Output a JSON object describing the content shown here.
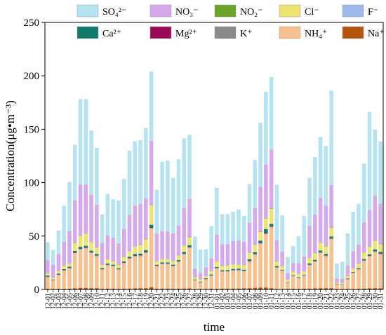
{
  "chart_data": {
    "type": "bar",
    "stacked": true,
    "title": "",
    "xlabel": "time",
    "ylabel": "Concentration(μg•m⁻³)",
    "ylim": [
      0,
      250
    ],
    "yticks": [
      0,
      50,
      100,
      150,
      200,
      250
    ],
    "grid": false,
    "legend_position": "top",
    "categories": [
      "12-01",
      "12-02",
      "12-03",
      "12-04",
      "12-05",
      "12-06",
      "12-07",
      "12-08",
      "12-09",
      "12-10",
      "12-11",
      "12-12",
      "12-13",
      "12-14",
      "12-15",
      "12-16",
      "12-17",
      "12-18",
      "12-19",
      "12-20",
      "12-21",
      "12-22",
      "12-23",
      "12-24",
      "12-25",
      "12-26",
      "12-27",
      "12-28",
      "12-29",
      "12-30",
      "12-31",
      "01-01",
      "01-02",
      "01-03",
      "01-04",
      "01-05",
      "01-06",
      "01-07",
      "01-08",
      "01-09",
      "01-10",
      "01-11",
      "01-12",
      "01-13",
      "01-14",
      "01-15",
      "01-16",
      "01-17",
      "01-18",
      "01-19",
      "01-20",
      "01-21",
      "01-22",
      "01-23",
      "01-24",
      "01-25",
      "01-26",
      "01-27",
      "01-28",
      "01-29",
      "01-30",
      "01-31"
    ],
    "series": [
      {
        "name": "Na⁺",
        "key": "Na",
        "color": "#b5540c",
        "values": [
          0.6,
          0.5,
          0.6,
          0.6,
          0.7,
          1,
          1.5,
          1.5,
          1.2,
          1.2,
          0.6,
          0.7,
          0.7,
          0.6,
          0.7,
          0.8,
          1,
          1.2,
          1.2,
          2,
          0.7,
          0.8,
          0.8,
          0.7,
          0.8,
          0.9,
          1,
          0.5,
          0.4,
          0.5,
          0.7,
          0.6,
          0.7,
          0.8,
          0.8,
          0.9,
          1,
          1.2,
          1.5,
          1.8,
          1.8,
          1.2,
          0.5,
          0.4,
          0.5,
          0.6,
          0.6,
          0.7,
          0.8,
          1,
          1.2,
          1.2,
          1.2,
          0.4,
          0.3,
          0.5,
          0.5,
          0.6,
          0.8,
          1,
          1.2,
          1
        ]
      },
      {
        "name": "NH₄⁺",
        "key": "NH4",
        "color": "#f6c08f",
        "values": [
          11,
          8,
          13,
          17,
          19,
          33,
          36,
          37,
          33,
          30,
          18,
          22,
          21,
          18,
          24,
          28,
          30,
          30,
          33,
          55,
          21,
          23,
          23,
          21,
          25,
          32,
          38,
          8,
          6,
          9,
          12,
          19,
          16,
          16,
          17,
          17,
          16,
          25,
          31,
          41,
          50,
          57,
          20,
          17,
          6,
          12,
          10,
          12,
          22,
          25,
          33,
          30,
          46,
          4,
          4,
          9,
          15,
          18,
          26,
          30,
          34,
          32
        ]
      },
      {
        "name": "K⁺",
        "key": "K",
        "color": "#8a8a8a",
        "values": [
          0.3,
          0.2,
          0.3,
          0.3,
          0.4,
          0.5,
          0.6,
          0.6,
          0.5,
          0.5,
          0.3,
          0.3,
          0.3,
          0.3,
          0.3,
          0.4,
          0.5,
          0.5,
          0.5,
          0.7,
          0.3,
          0.3,
          0.3,
          0.3,
          0.4,
          0.4,
          0.5,
          0.2,
          0.2,
          0.2,
          0.3,
          0.3,
          0.3,
          0.3,
          0.3,
          0.3,
          0.3,
          0.4,
          0.5,
          0.6,
          0.7,
          0.7,
          0.3,
          0.2,
          0.1,
          0.2,
          0.2,
          0.2,
          0.3,
          0.4,
          0.4,
          0.4,
          0.5,
          0.1,
          0.1,
          0.2,
          0.2,
          0.3,
          0.4,
          0.4,
          0.5,
          0.5
        ]
      },
      {
        "name": "Mg²⁺",
        "key": "Mg",
        "color": "#9b0b55",
        "values": [
          0.2,
          0.1,
          0.2,
          0.2,
          0.2,
          0.3,
          0.3,
          0.3,
          0.3,
          0.3,
          0.2,
          0.2,
          0.2,
          0.2,
          0.2,
          0.2,
          0.3,
          0.3,
          0.3,
          0.4,
          0.2,
          0.2,
          0.2,
          0.2,
          0.2,
          0.3,
          0.3,
          0.1,
          0.1,
          0.1,
          0.2,
          0.2,
          0.2,
          0.2,
          0.2,
          0.2,
          0.2,
          0.3,
          0.3,
          0.3,
          0.4,
          0.4,
          0.2,
          0.1,
          0.1,
          0.1,
          0.1,
          0.1,
          0.2,
          0.2,
          0.3,
          0.3,
          0.3,
          0.1,
          0.1,
          0.1,
          0.1,
          0.2,
          0.2,
          0.3,
          0.3,
          0.3
        ]
      },
      {
        "name": "Ca²⁺",
        "key": "Ca",
        "color": "#127a6c",
        "values": [
          0.8,
          0.5,
          0.8,
          0.9,
          1,
          1.3,
          1.5,
          1.5,
          1.3,
          1.2,
          0.9,
          1,
          1,
          0.8,
          1,
          1.2,
          1.3,
          1.5,
          1.8,
          2.5,
          0.9,
          1,
          1,
          1,
          1.2,
          1.4,
          1.6,
          0.5,
          0.5,
          0.6,
          0.8,
          0.9,
          0.8,
          0.9,
          0.9,
          1,
          1,
          1.3,
          1.5,
          2,
          3.5,
          2,
          0.8,
          0.6,
          0.4,
          0.5,
          0.6,
          0.6,
          1,
          1.2,
          1.5,
          1.4,
          1.6,
          0.3,
          0.3,
          0.5,
          0.6,
          0.8,
          1,
          1.2,
          1.4,
          1.3
        ]
      },
      {
        "name": "F⁻",
        "key": "F",
        "color": "#9fb9ea",
        "values": [
          0.1,
          0.1,
          0.1,
          0.1,
          0.1,
          0.1,
          0.1,
          0.1,
          0.1,
          0.1,
          0.1,
          0.1,
          0.1,
          0.1,
          0.1,
          0.1,
          0.1,
          0.1,
          0.1,
          0.2,
          0.1,
          0.1,
          0.1,
          0.1,
          0.1,
          0.1,
          0.1,
          0.1,
          0.1,
          0.1,
          0.1,
          0.1,
          0.1,
          0.1,
          0.1,
          0.1,
          0.1,
          0.1,
          0.1,
          0.1,
          0.2,
          0.2,
          0.1,
          0.1,
          0.1,
          0.1,
          0.1,
          0.1,
          0.1,
          0.1,
          0.1,
          0.1,
          0.1,
          0.1,
          0.1,
          0.1,
          0.1,
          0.1,
          0.1,
          0.1,
          0.1,
          0.1
        ]
      },
      {
        "name": "Cl⁻",
        "key": "Cl",
        "color": "#ece46f",
        "values": [
          2,
          1.5,
          2,
          3,
          3,
          7,
          10,
          11,
          8,
          6,
          3,
          4,
          3,
          3,
          4,
          5,
          7,
          8,
          10,
          18,
          3,
          3,
          3,
          3,
          4,
          6,
          7,
          2,
          2,
          2,
          3,
          5,
          4,
          4,
          4,
          4,
          4,
          6,
          7,
          8,
          10,
          14,
          4,
          3,
          2,
          3,
          3,
          3,
          5,
          6,
          7,
          7,
          8,
          1,
          1,
          2,
          3,
          4,
          6,
          7,
          8,
          7
        ]
      },
      {
        "name": "NO₂⁻",
        "key": "NO2",
        "color": "#6ca329",
        "values": [
          0.2,
          0.1,
          0.2,
          0.2,
          0.2,
          0.3,
          0.3,
          0.3,
          0.3,
          0.3,
          0.2,
          0.2,
          0.2,
          0.2,
          0.2,
          0.2,
          0.3,
          0.3,
          0.3,
          0.4,
          0.2,
          0.2,
          0.2,
          0.2,
          0.2,
          0.3,
          0.3,
          0.1,
          0.1,
          0.1,
          0.2,
          0.2,
          0.2,
          0.2,
          0.2,
          0.2,
          0.2,
          0.3,
          0.3,
          0.3,
          0.4,
          0.4,
          0.2,
          0.1,
          0.1,
          0.1,
          0.1,
          0.1,
          0.2,
          0.2,
          0.3,
          0.3,
          0.3,
          0.1,
          0.1,
          0.1,
          0.1,
          0.2,
          0.2,
          0.3,
          0.3,
          0.3
        ]
      },
      {
        "name": "NO₃⁻",
        "key": "NO3",
        "color": "#d6a9ec",
        "values": [
          12,
          12,
          16,
          22,
          30,
          40,
          48,
          46,
          44,
          40,
          20,
          22,
          22,
          20,
          26,
          34,
          38,
          38,
          38,
          60,
          26,
          26,
          26,
          26,
          28,
          35,
          36,
          8,
          6,
          8,
          12,
          25,
          20,
          20,
          22,
          22,
          22,
          28,
          34,
          42,
          50,
          55,
          20,
          14,
          6,
          8,
          10,
          14,
          30,
          36,
          42,
          38,
          40,
          4,
          4,
          10,
          16,
          18,
          28,
          34,
          42,
          38
        ]
      },
      {
        "name": "SO₄²⁻",
        "key": "SO4",
        "color": "#b5e3f0",
        "values": [
          17,
          14,
          22,
          34,
          46,
          52,
          80,
          80,
          60,
          53,
          27,
          39,
          36,
          40,
          47,
          60,
          60,
          60,
          66,
          65,
          41,
          65,
          66,
          52,
          62,
          65,
          60,
          30,
          22,
          17,
          30,
          44,
          28,
          28,
          27,
          29,
          24,
          36,
          45,
          60,
          68,
          68,
          52,
          34,
          15,
          16,
          25,
          38,
          45,
          54,
          57,
          56,
          88,
          14,
          16,
          30,
          37,
          38,
          55,
          92,
          62,
          58
        ]
      }
    ]
  }
}
